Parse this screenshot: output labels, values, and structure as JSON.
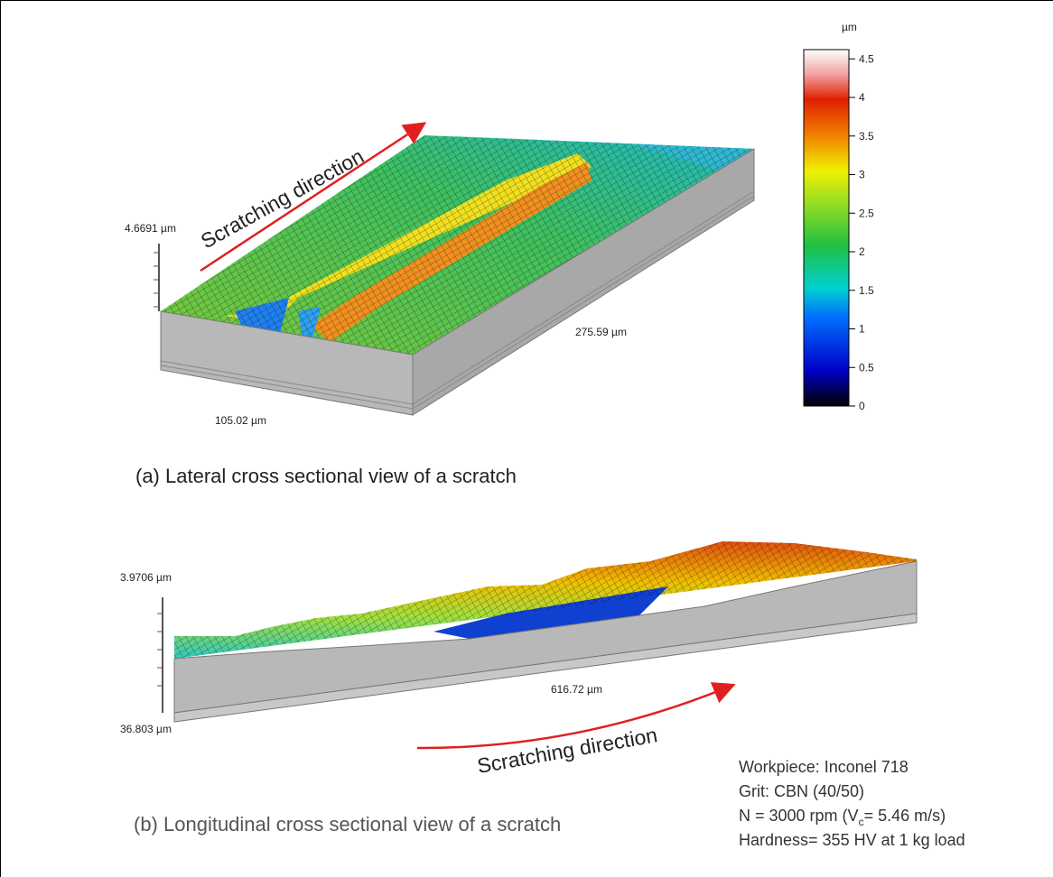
{
  "panel_a": {
    "z_label": "4.6691 µm",
    "y_label": "275.59 µm",
    "x_label": "105.02 µm",
    "arrow_label": "Scratching direction",
    "caption": "(a)  Lateral cross sectional view of a scratch"
  },
  "colorbar": {
    "unit": "µm",
    "lim": [
      0,
      4.62
    ],
    "ticks": [
      0,
      0.5,
      1,
      1.5,
      2,
      2.5,
      3,
      3.5,
      4,
      4.5
    ]
  },
  "panel_b": {
    "z_top_label": "3.9706 µm",
    "z_bottom_label": "36.803 µm",
    "x_label": "616.72 µm",
    "arrow_label": "Scratching direction",
    "caption": "(b) Longitudinal cross sectional view of  a scratch"
  },
  "conditions": {
    "workpiece": "Workpiece: Inconel 718",
    "grit": "Grit: CBN (40/50)",
    "speed": {
      "pre": "N = 3000 rpm (V",
      "sub": "c",
      "post": "= 5.46 m/s)"
    },
    "hardness": "Hardness= 355 HV at 1 kg load"
  }
}
